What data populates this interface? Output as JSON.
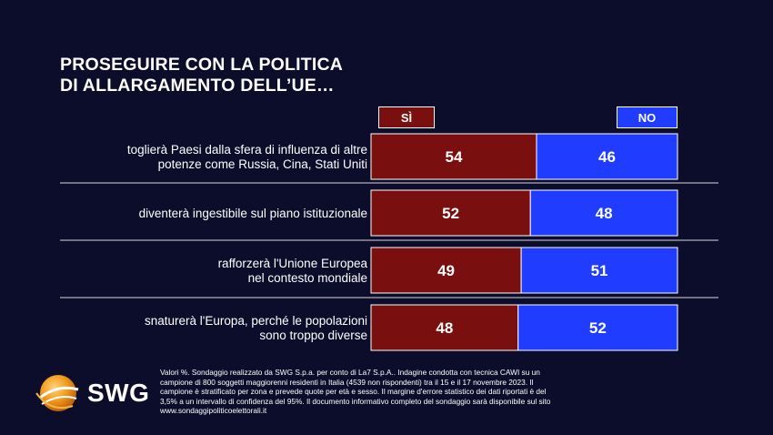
{
  "title_lines": [
    "PROSEGUIRE CON LA POLITICA",
    "DI ALLARGAMENTO DELL’UE…"
  ],
  "legend": {
    "si": "SÌ",
    "no": "NO"
  },
  "colors": {
    "si": "#7a0f0f",
    "no": "#1f3cff",
    "background": "#0b0d2a"
  },
  "chart_data": {
    "type": "bar",
    "stacked": true,
    "orientation": "horizontal",
    "categories": [
      [
        "toglierà Paesi dalla sfera di influenza di altre",
        "potenze come Russia, Cina, Stati Uniti"
      ],
      [
        "diventerà ingestibile sul piano istituzionale"
      ],
      [
        "rafforzerà l'Unione Europea",
        "nel contesto mondiale"
      ],
      [
        "snaturerà l'Europa, perché le popolazioni",
        "sono troppo diverse"
      ]
    ],
    "series": [
      {
        "name": "SÌ",
        "values": [
          54,
          52,
          49,
          48
        ]
      },
      {
        "name": "NO",
        "values": [
          46,
          48,
          51,
          52
        ]
      }
    ],
    "xlim": [
      0,
      100
    ]
  },
  "logo": {
    "text": "SWG"
  },
  "footer_lines": [
    "Valori %. Sondaggio realizzato da SWG S.p.a. per conto di La7 S.p.A.. Indagine condotta con tecnica CAWI su un",
    "campione di 800 soggetti maggiorenni residenti in Italia (4539 non rispondenti) tra il 15 e il 17 novembre 2023. Il",
    "campione è stratificato per zona e prevede quote per età e sesso. Il margine d'errore statistico dei dati riportati è del",
    "3,5% a un intervallo di confidenza del 95%. Il documento informativo completo del sondaggio sarà disponibile sul sito",
    "www.sondaggipoliticoelettorali.it"
  ]
}
